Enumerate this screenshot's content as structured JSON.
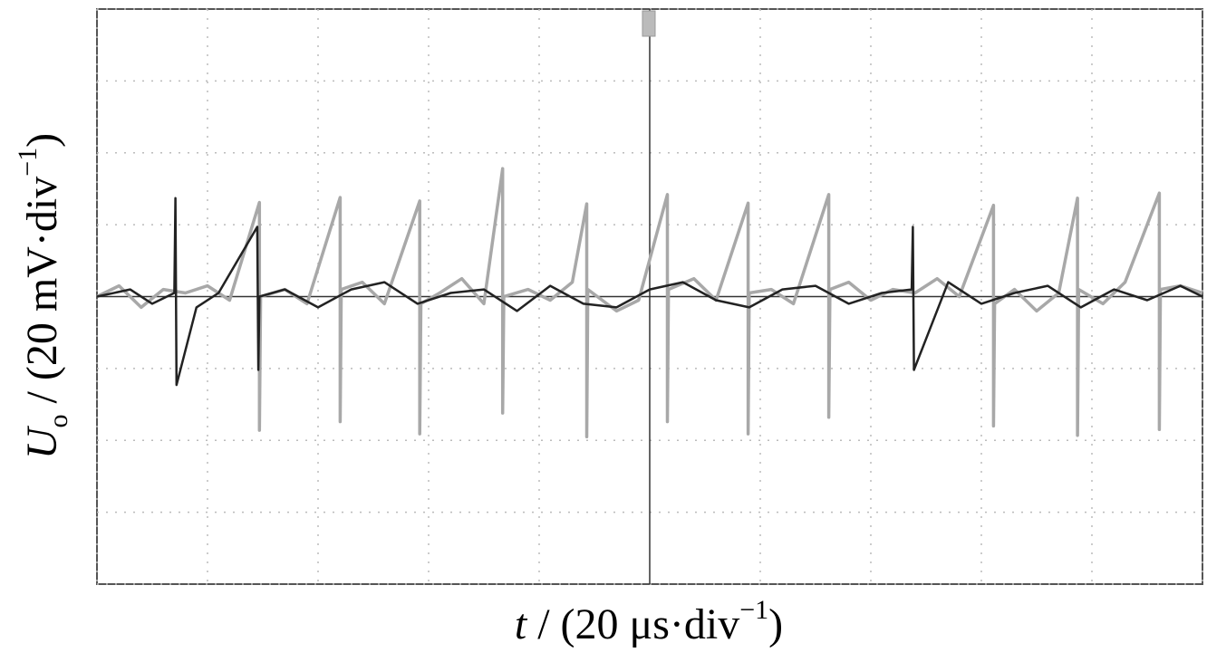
{
  "chart_data": {
    "type": "line",
    "ylabel": {
      "symbol": "U",
      "subscript": "o",
      "text": " / (20 mV·div",
      "superscript": "−1",
      "close": ")"
    },
    "xlabel": {
      "symbol": "t",
      "text": " / (20 μs·div",
      "superscript": "−1",
      "close": ")"
    },
    "xlim": [
      0,
      10
    ],
    "ylim": [
      -4,
      4
    ],
    "xticks": [
      0,
      1,
      2,
      3,
      4,
      5,
      6,
      7,
      8,
      9,
      10
    ],
    "yticks": [
      -4,
      -3,
      -2,
      -1,
      0,
      1,
      2,
      3,
      4
    ],
    "grid": true,
    "series": [
      {
        "color": "#a8a8a8",
        "x": [
          0,
          0.2,
          0.4,
          0.6,
          0.8,
          1.0,
          1.2,
          1.47,
          1.47,
          1.48,
          1.7,
          1.9,
          2.2,
          2.2,
          2.21,
          2.4,
          2.6,
          2.92,
          2.92,
          2.93,
          3.1,
          3.3,
          3.5,
          3.67,
          3.67,
          3.68,
          3.9,
          4.1,
          4.3,
          4.43,
          4.43,
          4.44,
          4.7,
          4.9,
          5.16,
          5.16,
          5.17,
          5.4,
          5.6,
          5.89,
          5.89,
          5.9,
          6.1,
          6.3,
          6.62,
          6.62,
          6.63,
          6.8,
          7.0,
          7.2,
          7.4,
          7.6,
          7.8,
          8.11,
          8.11,
          8.12,
          8.3,
          8.5,
          8.7,
          8.87,
          8.87,
          8.88,
          9.1,
          9.3,
          9.61,
          9.61,
          9.62,
          9.8,
          10
        ],
        "values": [
          0,
          0.15,
          -0.15,
          0.1,
          0.05,
          0.15,
          -0.05,
          1.31,
          -1.86,
          0,
          0.1,
          -0.1,
          1.38,
          -1.74,
          0.1,
          0.2,
          -0.1,
          1.33,
          -1.91,
          -0.1,
          0.05,
          0.25,
          -0.1,
          1.78,
          -1.62,
          0,
          0.1,
          -0.05,
          0.2,
          1.29,
          -1.95,
          0.1,
          -0.2,
          -0.05,
          1.42,
          -1.74,
          0.1,
          0.25,
          -0.05,
          1.3,
          -1.91,
          0.05,
          0.1,
          -0.1,
          1.42,
          -1.68,
          0.1,
          0.2,
          -0.05,
          0.1,
          0.05,
          0.25,
          0,
          1.27,
          -1.8,
          -0.1,
          0.1,
          -0.2,
          0.05,
          1.37,
          -1.93,
          0.1,
          -0.1,
          0.2,
          1.44,
          -1.85,
          0.1,
          0.15,
          0.05
        ]
      },
      {
        "color": "#222222",
        "x": [
          0,
          0.3,
          0.5,
          0.7,
          0.71,
          0.72,
          0.9,
          1.1,
          1.45,
          1.46,
          1.47,
          1.7,
          2.0,
          2.3,
          2.6,
          2.9,
          3.2,
          3.5,
          3.8,
          4.1,
          4.4,
          4.7,
          5.0,
          5.3,
          5.6,
          5.9,
          6.2,
          6.5,
          6.8,
          7.1,
          7.37,
          7.38,
          7.39,
          7.7,
          8.0,
          8.3,
          8.6,
          8.9,
          9.2,
          9.5,
          9.8,
          10
        ],
        "values": [
          0,
          0.1,
          -0.1,
          0.05,
          1.37,
          -1.23,
          -0.15,
          0.05,
          0.97,
          -1.02,
          0,
          0.1,
          -0.15,
          0.1,
          0.2,
          -0.1,
          0.05,
          0.1,
          -0.2,
          0.15,
          -0.1,
          -0.15,
          0.1,
          0.2,
          -0.05,
          -0.15,
          0.1,
          0.15,
          -0.1,
          0.05,
          0.1,
          0.97,
          -1.02,
          0.2,
          -0.1,
          0.05,
          0.15,
          -0.15,
          0.1,
          -0.05,
          0.15,
          0
        ]
      }
    ]
  }
}
